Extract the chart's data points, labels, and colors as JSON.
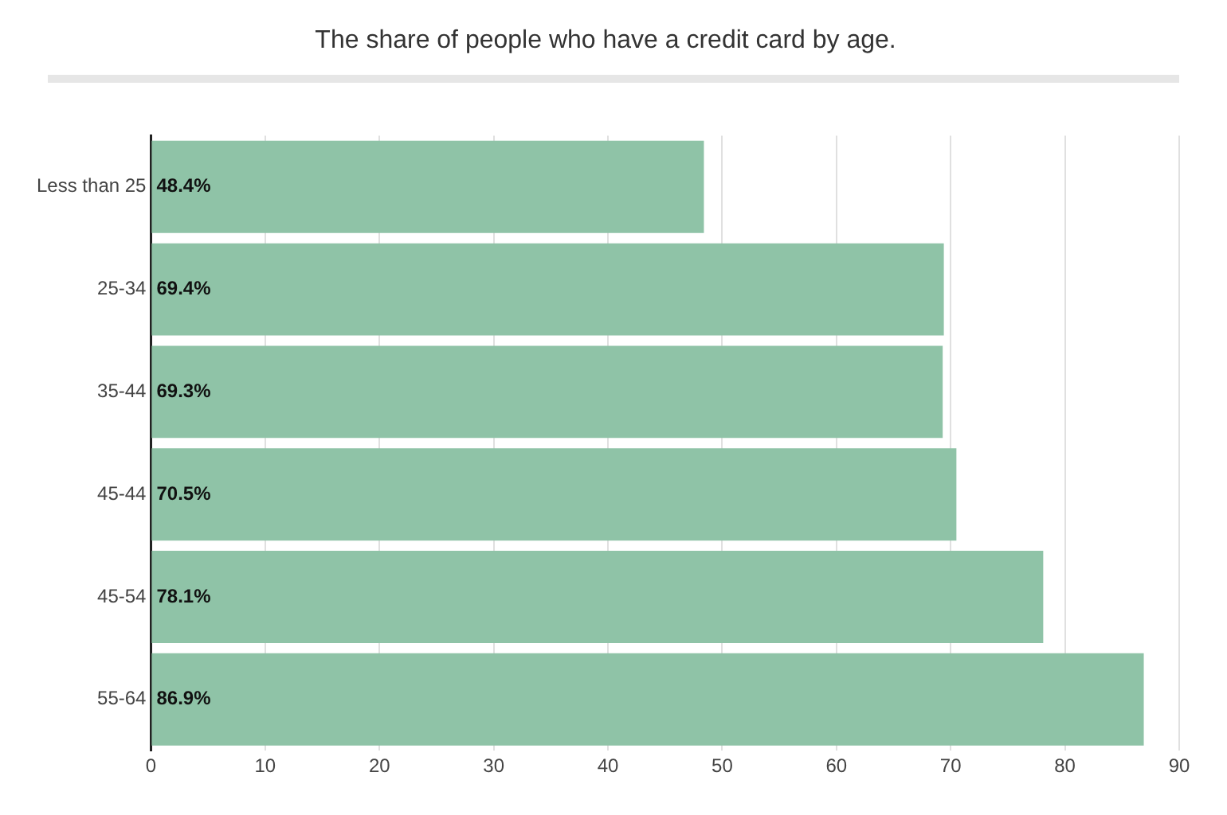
{
  "chart_data": {
    "type": "bar",
    "orientation": "horizontal",
    "title": "The share of people who have a credit card by age.",
    "categories": [
      "Less than 25",
      "25-34",
      "35-44",
      "45-44",
      "45-54",
      "55-64"
    ],
    "values": [
      48.4,
      69.4,
      69.3,
      70.5,
      78.1,
      86.9
    ],
    "value_labels": [
      "48.4%",
      "69.4%",
      "69.3%",
      "70.5%",
      "78.1%",
      "86.9%"
    ],
    "color": "#8fc3a7",
    "xlim": [
      0,
      90
    ],
    "xticks": [
      0,
      10,
      20,
      30,
      40,
      50,
      60,
      70,
      80,
      90
    ],
    "grid": "x",
    "legend": false
  }
}
